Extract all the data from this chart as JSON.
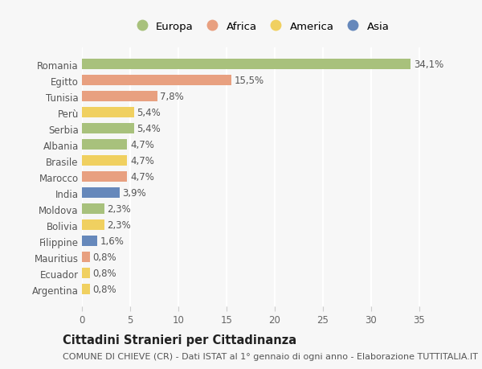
{
  "categories": [
    "Romania",
    "Egitto",
    "Tunisia",
    "Perù",
    "Serbia",
    "Albania",
    "Brasile",
    "Marocco",
    "India",
    "Moldova",
    "Bolivia",
    "Filippine",
    "Mauritius",
    "Ecuador",
    "Argentina"
  ],
  "values": [
    34.1,
    15.5,
    7.8,
    5.4,
    5.4,
    4.7,
    4.7,
    4.7,
    3.9,
    2.3,
    2.3,
    1.6,
    0.8,
    0.8,
    0.8
  ],
  "labels": [
    "34,1%",
    "15,5%",
    "7,8%",
    "5,4%",
    "5,4%",
    "4,7%",
    "4,7%",
    "4,7%",
    "3,9%",
    "2,3%",
    "2,3%",
    "1,6%",
    "0,8%",
    "0,8%",
    "0,8%"
  ],
  "continents": [
    "Europa",
    "Africa",
    "Africa",
    "America",
    "Europa",
    "Europa",
    "America",
    "Africa",
    "Asia",
    "Europa",
    "America",
    "Asia",
    "Africa",
    "America",
    "America"
  ],
  "colors": {
    "Europa": "#a8c17c",
    "Africa": "#e8a080",
    "America": "#f0d060",
    "Asia": "#6688bb"
  },
  "background_color": "#f7f7f7",
  "title": "Cittadini Stranieri per Cittadinanza",
  "subtitle": "COMUNE DI CHIEVE (CR) - Dati ISTAT al 1° gennaio di ogni anno - Elaborazione TUTTITALIA.IT",
  "xlim": [
    0,
    37
  ],
  "xticks": [
    0,
    5,
    10,
    15,
    20,
    25,
    30,
    35
  ],
  "bar_height": 0.65,
  "label_fontsize": 8.5,
  "tick_fontsize": 8.5,
  "title_fontsize": 10.5,
  "subtitle_fontsize": 8,
  "legend_fontsize": 9.5
}
